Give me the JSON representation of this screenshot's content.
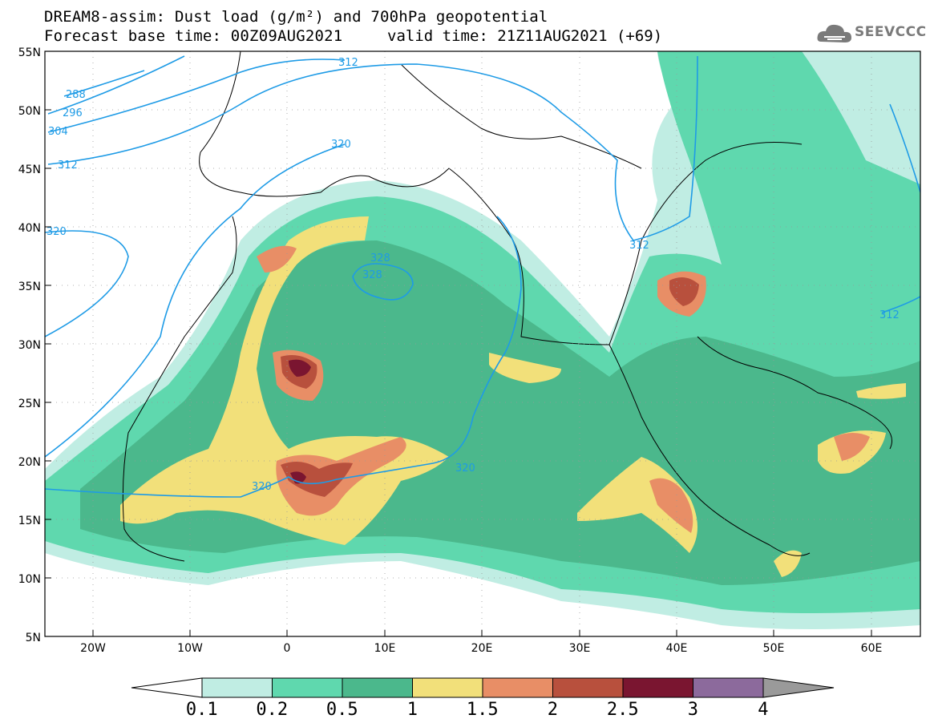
{
  "title_line1": "DREAM8-assim: Dust load (g/m²) and 700hPa geopotential",
  "forecast_base": "Forecast base time: 00Z09AUG2021",
  "valid_time": "valid time: 21Z11AUG2021 (+69)",
  "logo": {
    "name": "SEEVCCC",
    "icon": "cloud-logo-icon"
  },
  "axes": {
    "lat_ticks": [
      "55N",
      "50N",
      "45N",
      "40N",
      "35N",
      "30N",
      "25N",
      "20N",
      "15N",
      "10N",
      "5N"
    ],
    "lon_ticks": [
      "20W",
      "10W",
      "0",
      "10E",
      "20E",
      "30E",
      "40E",
      "50E",
      "60E"
    ],
    "lat_range": [
      5,
      55
    ],
    "lon_range": [
      -25,
      65
    ]
  },
  "colorbar": {
    "labels": [
      "0.1",
      "0.2",
      "0.5",
      "1",
      "1.5",
      "2",
      "2.5",
      "3",
      "4"
    ],
    "colors": [
      "#c0ede3",
      "#5fd8ae",
      "#4bb88c",
      "#f2e07a",
      "#e88e66",
      "#b8503d",
      "#7a1530",
      "#8c6a9c",
      "#9a9a9a"
    ]
  },
  "contour_labels": {
    "c288": "288",
    "c296": "296",
    "c304": "304",
    "c312a": "312",
    "c312b": "312",
    "c312c": "312",
    "c312d": "312",
    "c320a": "320",
    "c320b": "320",
    "c320c": "320",
    "c320d": "320",
    "c328a": "328",
    "c328b": "328"
  }
}
